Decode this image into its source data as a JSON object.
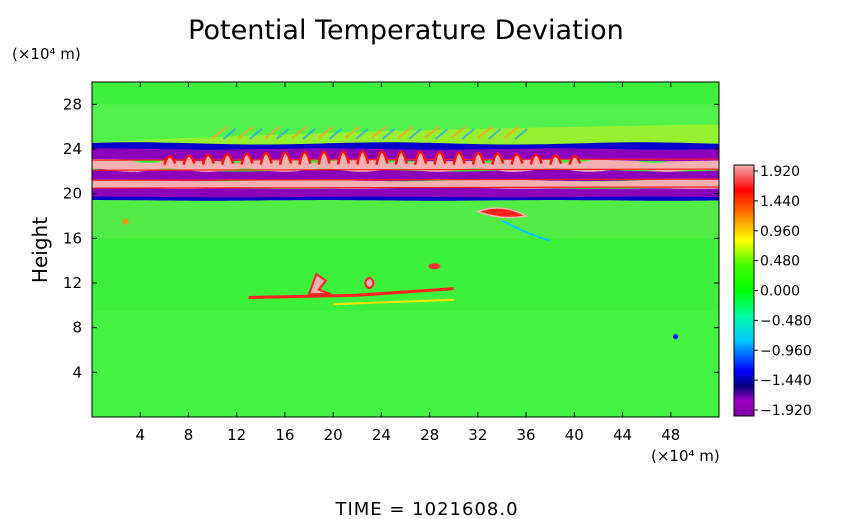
{
  "chart_data": {
    "type": "heatmap",
    "title": "Potential Temperature Deviation",
    "ylabel": "Height",
    "y_unit": "(×10⁴ m)",
    "x_unit": "(×10⁴ m)",
    "xlim": [
      0,
      52
    ],
    "ylim": [
      0,
      30
    ],
    "x_ticks": [
      "4",
      "8",
      "12",
      "16",
      "20",
      "24",
      "28",
      "32",
      "36",
      "40",
      "44",
      "48"
    ],
    "x_tick_values": [
      4,
      8,
      12,
      16,
      20,
      24,
      28,
      32,
      36,
      40,
      44,
      48
    ],
    "y_ticks": [
      "4",
      "8",
      "12",
      "16",
      "20",
      "24",
      "28"
    ],
    "y_tick_values": [
      4,
      8,
      12,
      16,
      20,
      24,
      28
    ],
    "colorbar": {
      "labels": [
        "1.920",
        "1.440",
        "0.960",
        "0.480",
        "0.000",
        "−0.480",
        "−0.960",
        "−1.440",
        "−1.920"
      ],
      "values": [
        1.92,
        1.44,
        0.96,
        0.48,
        0.0,
        -0.48,
        -0.96,
        -1.44,
        -1.92
      ],
      "colors": [
        "#f4b0b0",
        "#ff0000",
        "#ff8000",
        "#ffff00",
        "#00ff00",
        "#00ffa0",
        "#00c8ff",
        "#0000ff",
        "#000080",
        "#800080",
        "#a000c8"
      ]
    },
    "features": [
      {
        "name": "lower-blue-band",
        "y": 20.0,
        "value": -1.92
      },
      {
        "name": "pink-band",
        "y": 21.0,
        "value": 1.92
      },
      {
        "name": "purple-band",
        "y": 21.8,
        "value": -1.92
      },
      {
        "name": "wavy-red-band",
        "y": 22.8,
        "value": 1.6
      },
      {
        "name": "upper-purple-band",
        "y": 23.6,
        "value": -1.92
      },
      {
        "name": "red-anomaly-12km",
        "x_range": [
          14,
          30
        ],
        "y": 11.5,
        "value": 1.5
      }
    ]
  },
  "footer": {
    "time_text": "TIME  =  1021608.0"
  }
}
